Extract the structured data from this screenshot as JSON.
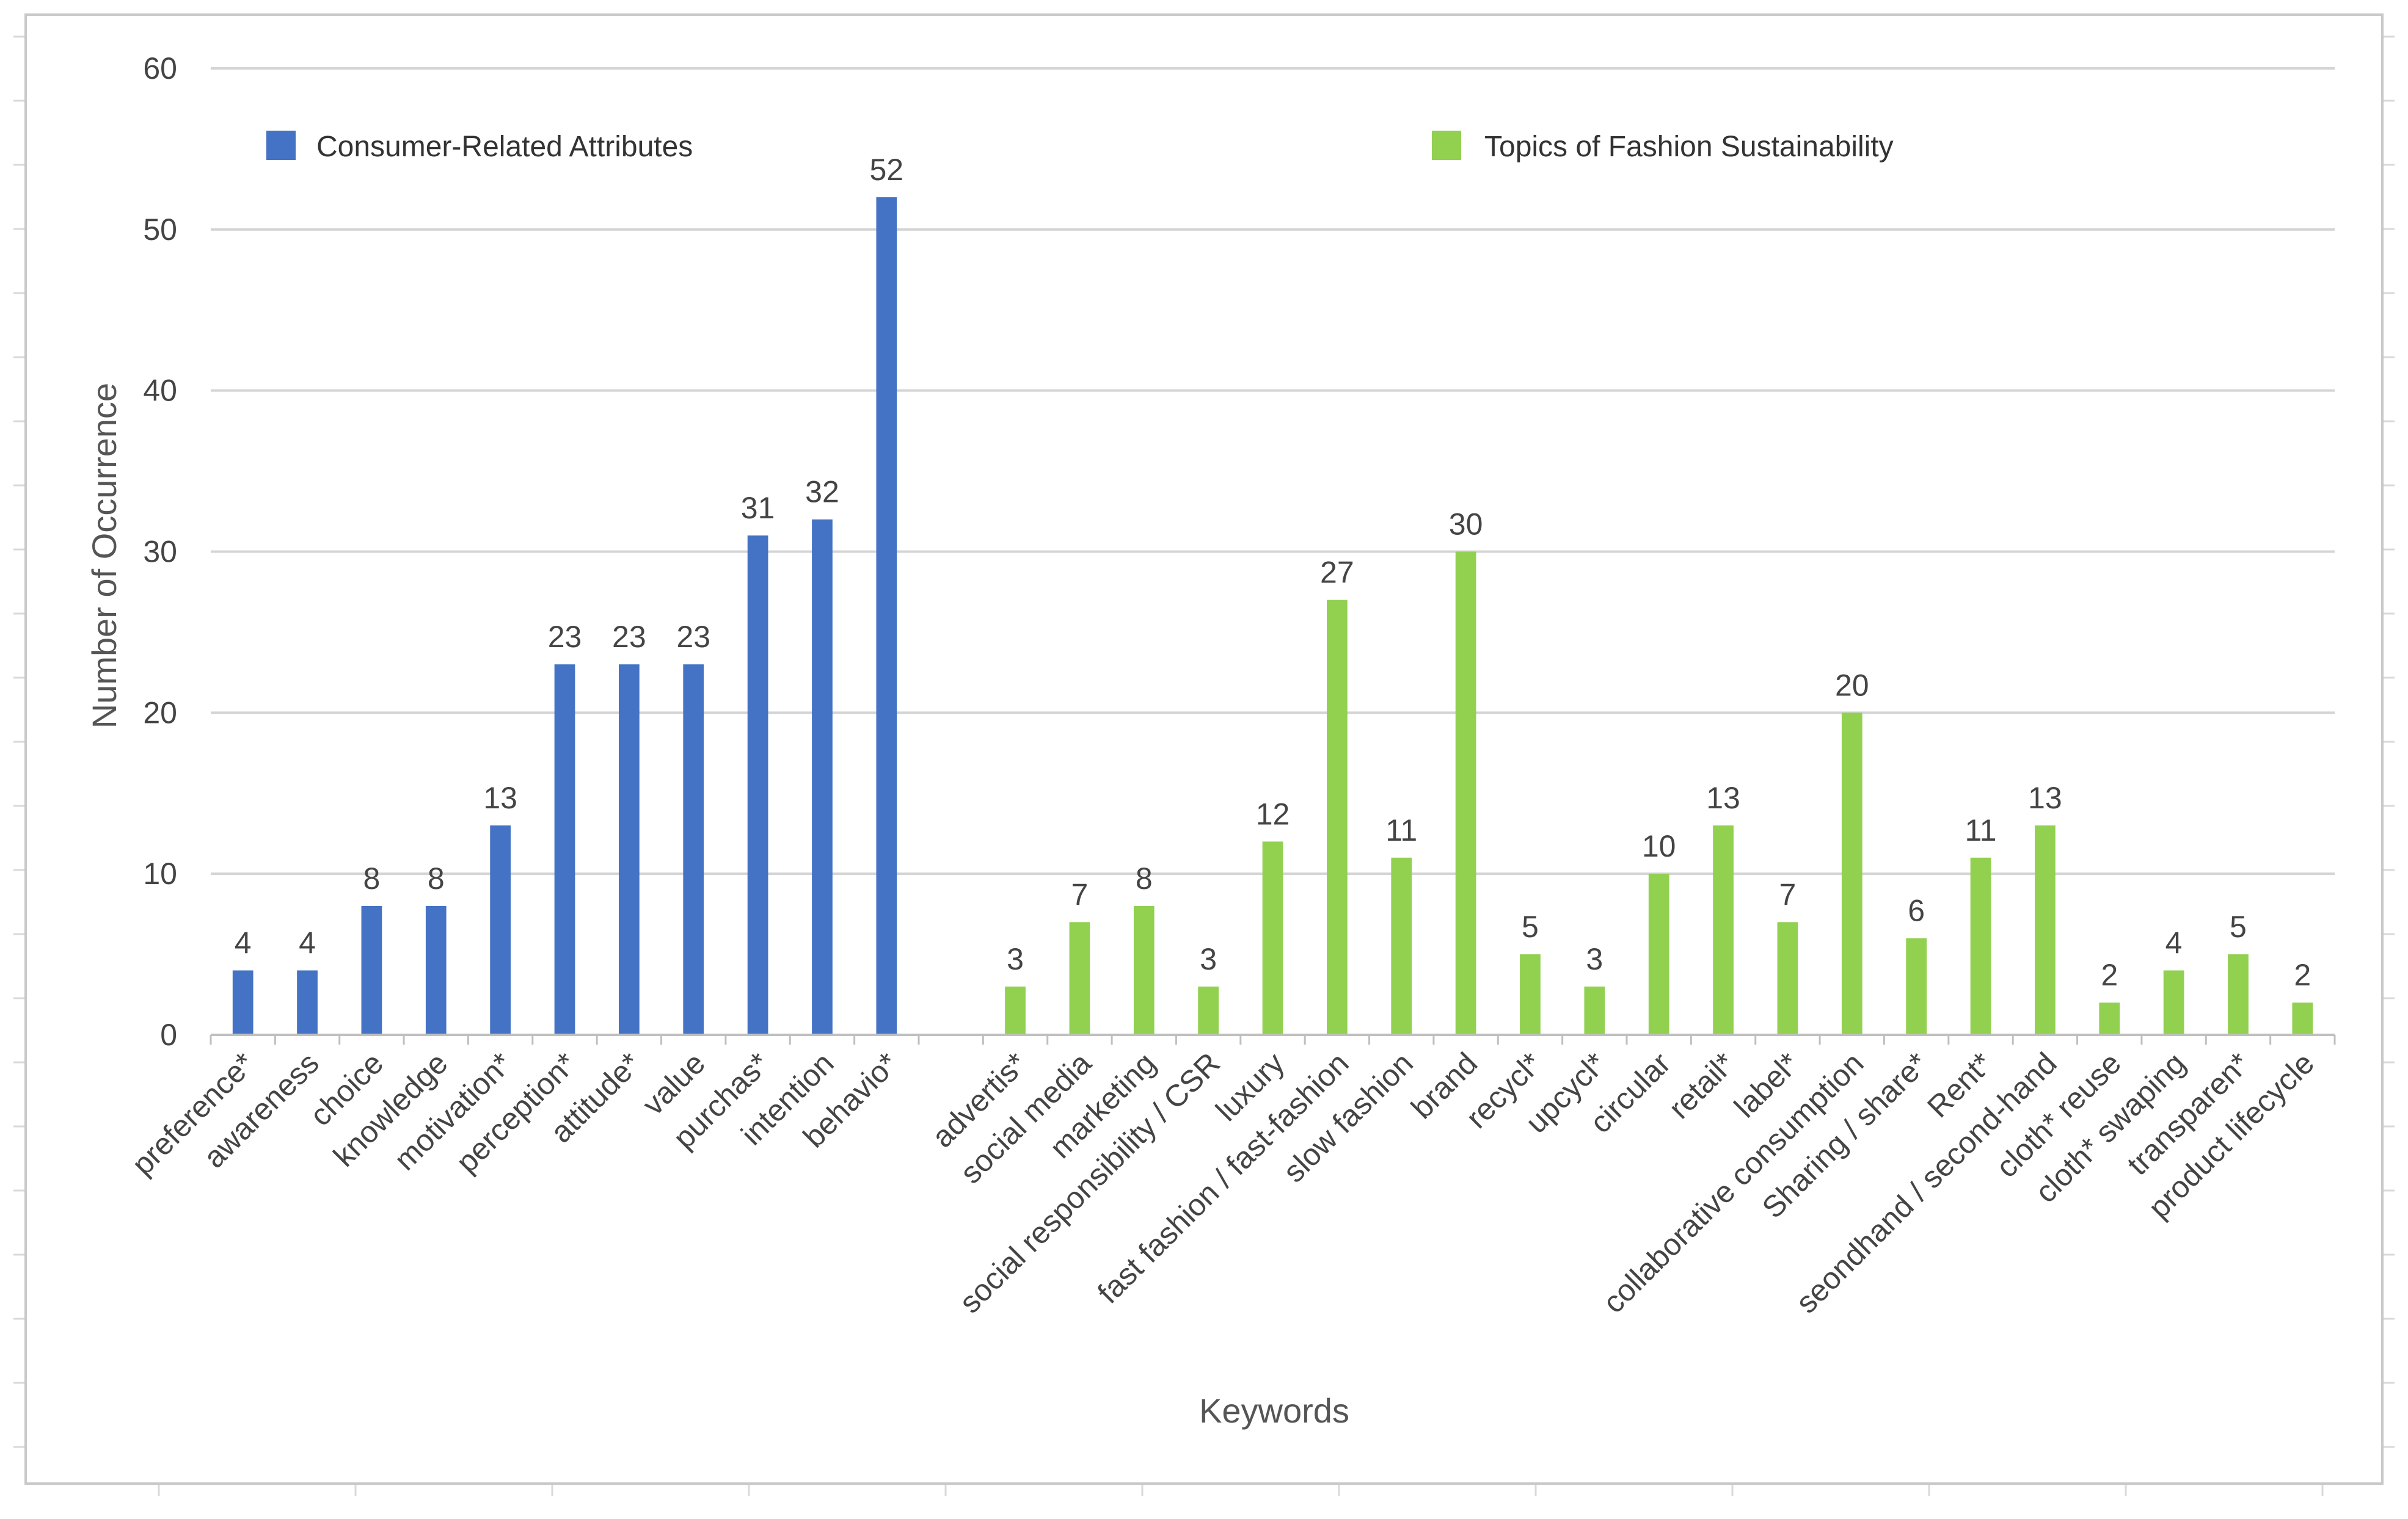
{
  "chart_data": {
    "type": "bar",
    "title": "",
    "xlabel": "Keywords",
    "ylabel": "Number of Occurrence",
    "ylim": [
      0,
      60
    ],
    "yticks": [
      0,
      10,
      20,
      30,
      40,
      50,
      60
    ],
    "grid": true,
    "legend_placement": "top",
    "series": [
      {
        "name": "Consumer-Related Attributes",
        "color": "#4472C4",
        "categories": [
          "preference*",
          "awareness",
          "choice",
          "knowledge",
          "motivation*",
          "perception*",
          "attitude*",
          "value",
          "purchas*",
          "intention",
          "behavio*"
        ],
        "values": [
          4,
          4,
          8,
          8,
          13,
          23,
          23,
          23,
          31,
          32,
          52
        ]
      },
      {
        "name": "Topics of Fashion Sustainability",
        "color": "#92D050",
        "categories": [
          "advertis*",
          "social media",
          "marketing",
          "social responsibility / CSR",
          "luxury",
          "fast fashion / fast-fashion",
          "slow fashion",
          "brand",
          "recycl*",
          "upcycl*",
          "circular",
          "retail*",
          "label*",
          "collaborative consumption",
          "Sharing / share*",
          "Rent*",
          "seondhand / second-hand",
          "cloth* reuse",
          "cloth* swaping",
          "transparen*",
          "product lifecycle"
        ],
        "values": [
          3,
          7,
          8,
          3,
          12,
          27,
          11,
          30,
          5,
          3,
          10,
          13,
          7,
          20,
          6,
          11,
          13,
          2,
          4,
          5,
          2
        ]
      }
    ]
  }
}
